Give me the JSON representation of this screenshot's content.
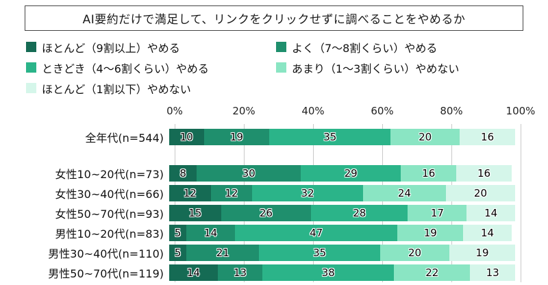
{
  "title": "AI要約だけで満足して、リンクをクリックせずに調べることをやめるか",
  "legend": [
    {
      "label": "ほとんど（9割以上）やめる",
      "color": "#156b54"
    },
    {
      "label": "よく（7～8割くらい）やめる",
      "color": "#1f8f6d"
    },
    {
      "label": "ときどき（4～6割くらい）やめる",
      "color": "#2bb489"
    },
    {
      "label": "あまり（1～3割くらい）やめない",
      "color": "#8ae5c3"
    },
    {
      "label": "ほとんど（1割以下）やめない",
      "color": "#d5f6ea"
    }
  ],
  "chart_data": {
    "type": "bar",
    "stacked": true,
    "orientation": "horizontal",
    "unit": "%",
    "xlim": [
      0,
      100
    ],
    "x_ticks_percent": [
      0,
      20,
      40,
      60,
      80,
      100
    ],
    "grid": true,
    "legend_position": "top",
    "categories": [
      "全年代(n=544)",
      "女性10~20代(n=73)",
      "女性30~40代(n=66)",
      "女性50~70代(n=93)",
      "男性10~20代(n=83)",
      "男性30~40代(n=110)",
      "男性50~70代(n=119)"
    ],
    "series": [
      {
        "name": "ほとんど（9割以上）やめる",
        "color": "#156b54",
        "values": [
          10,
          8,
          12,
          15,
          5,
          5,
          14
        ]
      },
      {
        "name": "よく（7～8割くらい）やめる",
        "color": "#1f8f6d",
        "values": [
          19,
          30,
          12,
          26,
          14,
          21,
          13
        ]
      },
      {
        "name": "ときどき（4～6割くらい）やめる",
        "color": "#2bb489",
        "values": [
          35,
          29,
          32,
          28,
          47,
          35,
          38
        ]
      },
      {
        "name": "あまり（1～3割くらい）やめない",
        "color": "#8ae5c3",
        "values": [
          20,
          16,
          24,
          17,
          19,
          20,
          22
        ]
      },
      {
        "name": "ほとんど（1割以下）やめない",
        "color": "#d5f6ea",
        "values": [
          16,
          16,
          20,
          14,
          14,
          19,
          13
        ]
      }
    ]
  }
}
